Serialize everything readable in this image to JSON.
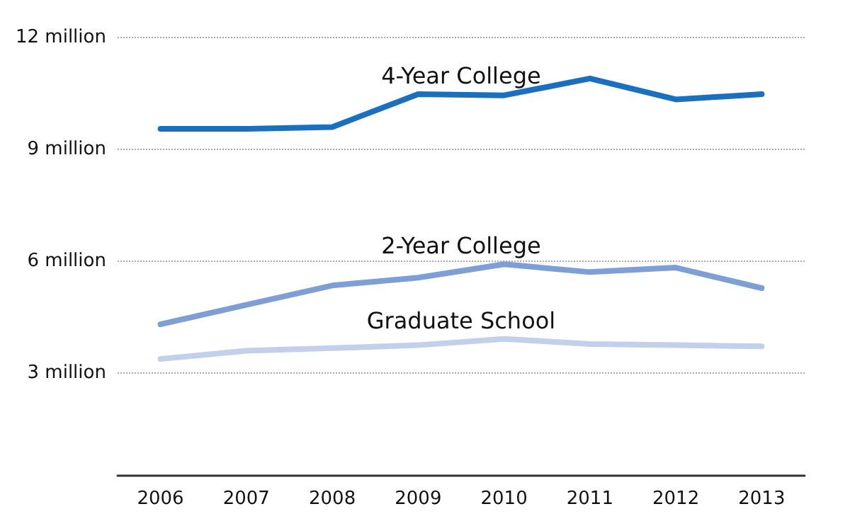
{
  "chart_data": {
    "type": "line",
    "categories": [
      "2006",
      "2007",
      "2008",
      "2009",
      "2010",
      "2011",
      "2012",
      "2013"
    ],
    "series": [
      {
        "name": "4-Year College",
        "color": "#1a6fbf",
        "values": [
          9.55,
          9.55,
          9.6,
          10.48,
          10.45,
          10.9,
          10.34,
          10.48
        ]
      },
      {
        "name": "2-Year College",
        "color": "#7e9fd6",
        "values": [
          4.31,
          4.83,
          5.35,
          5.56,
          5.92,
          5.71,
          5.83,
          5.28
        ]
      },
      {
        "name": "Graduate School",
        "color": "#c3d0ec",
        "values": [
          3.38,
          3.6,
          3.67,
          3.75,
          3.92,
          3.78,
          3.75,
          3.72
        ]
      }
    ],
    "ylim": [
      0.25,
      12
    ],
    "yticks": [
      {
        "value": 3,
        "label": "3 million"
      },
      {
        "value": 6,
        "label": "6 million"
      },
      {
        "value": 9,
        "label": "9 million"
      },
      {
        "value": 12,
        "label": "12 million"
      }
    ],
    "grid": "y",
    "legend": false,
    "marker": "none",
    "line_style": "solid"
  }
}
